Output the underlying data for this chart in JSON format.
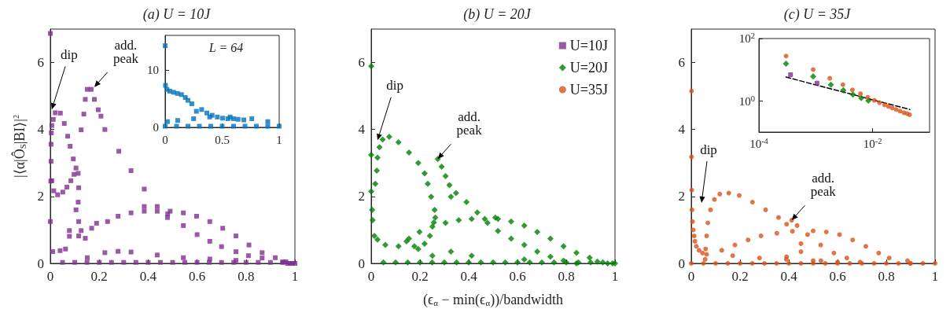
{
  "chart_data": [
    {
      "type": "scatter",
      "title": "(a) U = 10J",
      "ylabel": "|⟨α|Ô$_{S}$|BI⟩|$^{2}$",
      "xlim": [
        0,
        1
      ],
      "xticks": [
        0,
        0.2,
        0.4,
        0.6,
        0.8,
        1
      ],
      "ylim": [
        0,
        7
      ],
      "yticks": [
        0,
        2,
        4,
        6
      ],
      "marker": "square",
      "series": [
        {
          "color": "#7e2f8e",
          "x": [
            0,
            0,
            0.002,
            0.003,
            0.003,
            0.004,
            0.006,
            0.012,
            0.02,
            0.041,
            0.057,
            0.071,
            0.081,
            0.094,
            0.105,
            0.097,
            0.084,
            0.068,
            0.051,
            0.03,
            0.014,
            0.006,
            0.114,
            0.116,
            0.114,
            0.126,
            0.137,
            0.143,
            0.151,
            0.167,
            0.18,
            0.196,
            0.207,
            0.223,
            0.28,
            0.33,
            0.384,
            0.437,
            0.48,
            0.544,
            0.6,
            0.652,
            0.7,
            0.759,
            0.81,
            0.866,
            0.95,
            0.105,
            0.116,
            0.126,
            0.143,
            0.151,
            0.078,
            0.078,
            0.189,
            0.384,
            0.479,
            0.062,
            0.116,
            0.169,
            0.234,
            0.277,
            0.33,
            0.384,
            0.437,
            0.49,
            0.544,
            0.598,
            0.652,
            0.705,
            0.759,
            0.812,
            0.866,
            0.92,
            0.963,
            0.223,
            0.277,
            0.33,
            0.437,
            0.544,
            0.652,
            0.759,
            0.01,
            0.04,
            0.05,
            0.1,
            0.15,
            0.2,
            0.25,
            0.3,
            0.35,
            0.4,
            0.45,
            0.5,
            0.55,
            0.6,
            0.65,
            0.7,
            0.75,
            0.8,
            0.85,
            0.9,
            0.95,
            0.97,
            0.98,
            0.99,
            1
          ],
          "values": [
            6.87,
            1.25,
            2.46,
            3.05,
            3.56,
            3.9,
            4.12,
            4.3,
            4.5,
            4.49,
            4.18,
            3.8,
            3.5,
            3.12,
            2.85,
            2.66,
            2.47,
            2.28,
            2.13,
            2.05,
            2.17,
            2.47,
            1.83,
            2.26,
            2.69,
            3.99,
            4.46,
            4.9,
            5.2,
            5.2,
            4.9,
            4.59,
            4.4,
            4.0,
            3.35,
            2.77,
            2.22,
            1.7,
            1.48,
            1.13,
            0.86,
            0.66,
            0.5,
            0.35,
            0.23,
            0.16,
            0.04,
            1.6,
            1.25,
            0.98,
            0.75,
            0.17,
            0.98,
            0.81,
            1.2,
            1.7,
            1.37,
            0.43,
            0.82,
            1.05,
            1.25,
            1.41,
            1.51,
            1.56,
            1.56,
            1.56,
            1.51,
            1.41,
            1.25,
            1.05,
            0.82,
            0.55,
            0.32,
            0.17,
            0.05,
            0.32,
            0.36,
            0.34,
            0.25,
            0.17,
            0.13,
            0.09,
            0.35,
            0.38,
            0.03,
            0.03,
            0.03,
            0.03,
            0.03,
            0.03,
            0.03,
            0.03,
            0.03,
            0.03,
            0.03,
            0.03,
            0.03,
            0.03,
            0.03,
            0.03,
            0.03,
            0.03,
            0.03,
            0,
            0,
            0,
            0
          ]
        }
      ],
      "annotations": [
        {
          "text": "dip",
          "x": 0.006,
          "y": 4.6
        },
        {
          "text": "add. peak",
          "x": 0.18,
          "y": 5.27
        }
      ]
    },
    {
      "type": "scatter",
      "title": "L = 64",
      "xlim": [
        0,
        1
      ],
      "xticks": [
        0,
        0.5,
        1
      ],
      "ylim": [
        0,
        16
      ],
      "yticks": [
        0,
        10
      ],
      "marker": "square",
      "series": [
        {
          "color": "#0072bd",
          "x": [
            0,
            0.003,
            0.016,
            0.04,
            0.074,
            0.108,
            0.143,
            0.177,
            0.2,
            0.234,
            0.274,
            0.32,
            0.366,
            0.412,
            0.458,
            0.504,
            0.55,
            0.6,
            0.64,
            0.69,
            0.02,
            0.11,
            0.25,
            0.39,
            0.57,
            0.76,
            0.9,
            0,
            0.1,
            0.2,
            0.3,
            0.4,
            0.5,
            0.6,
            0.7,
            0.8,
            0.9,
            1
          ],
          "values": [
            14.2,
            7.3,
            6.6,
            6.3,
            6.1,
            5.9,
            5.7,
            5.2,
            4.7,
            4.1,
            2.8,
            3.1,
            2.5,
            2.1,
            1.8,
            1.6,
            1.5,
            1.5,
            1.4,
            1.3,
            1.0,
            1.2,
            1.5,
            1.8,
            1.8,
            1.5,
            1.0,
            0.2,
            0.2,
            0.2,
            0.2,
            0.2,
            0.2,
            0.2,
            0.2,
            0.2,
            0.2,
            0.2
          ]
        }
      ]
    },
    {
      "type": "scatter",
      "title": "(b) U = 20J",
      "xlabel": "(ϵ$_{α}$ − min(ϵ$_{α}$))/bandwidth",
      "xlim": [
        0,
        1
      ],
      "xticks": [
        0,
        0.2,
        0.4,
        0.6,
        0.8,
        1
      ],
      "ylim": [
        0,
        7
      ],
      "yticks": [
        0,
        2,
        4,
        6
      ],
      "marker": "diamond",
      "legend": "top right",
      "series": [
        {
          "name": "U=10J",
          "color": "#7e2f8e",
          "marker": "square"
        },
        {
          "name": "U=20J",
          "color": "#007f00",
          "x": [
            0,
            0,
            0,
            0.004,
            0.006,
            0.013,
            0.017,
            0.023,
            0.026,
            0.034,
            0.047,
            0.074,
            0.112,
            0.155,
            0.193,
            0.219,
            0.232,
            0.246,
            0.26,
            0.263,
            0.257,
            0.241,
            0.219,
            0.193,
            0.177,
            0.026,
            0.058,
            0.112,
            0.145,
            0.273,
            0.289,
            0.305,
            0.321,
            0.327,
            0.348,
            0.391,
            0.435,
            0.477,
            0.52,
            0.574,
            0.628,
            0.681,
            0.735,
            0.789,
            0.842,
            0.155,
            0.198,
            0.251,
            0.305,
            0.359,
            0.412,
            0.466,
            0.52,
            0.509,
            0.574,
            0.628,
            0.681,
            0.735,
            0.789,
            0.842,
            0.896,
            0.928,
            0.327,
            0.251,
            0.412,
            0.628,
            0.05,
            0.1,
            0.15,
            0.2,
            0.25,
            0.3,
            0.35,
            0.4,
            0.45,
            0.5,
            0.55,
            0.6,
            0.65,
            0.7,
            0.75,
            0.8,
            0.85,
            0.9,
            0.95,
            0.97,
            0.99,
            1
          ],
          "values": [
            5.89,
            3.24,
            2.15,
            1.6,
            1.29,
            0.82,
            2.38,
            2.77,
            3.16,
            3.47,
            3.7,
            3.78,
            3.62,
            3.31,
            3.0,
            2.69,
            2.38,
            1.99,
            1.6,
            1.37,
            1.22,
            0.82,
            0.59,
            0.43,
            0.51,
            0.71,
            0.55,
            0.51,
            0.66,
            3.12,
            2.89,
            2.61,
            2.34,
            1.99,
            2.1,
            1.83,
            1.52,
            1.21,
            0.97,
            0.74,
            0.55,
            0.35,
            0.2,
            0.08,
            0,
            0.74,
            0.94,
            1.1,
            1.21,
            1.29,
            1.33,
            1.33,
            1.33,
            1.37,
            1.25,
            1.13,
            0.94,
            0.74,
            0.51,
            0.32,
            0.17,
            0.05,
            0.35,
            0.23,
            0.23,
            0.12,
            0.03,
            0.03,
            0.03,
            0.03,
            0.03,
            0.03,
            0.03,
            0.03,
            0.03,
            0.03,
            0.03,
            0.03,
            0.03,
            0.03,
            0.03,
            0.03,
            0.03,
            0.03,
            0.03,
            0,
            0,
            0
          ]
        },
        {
          "name": "U=35J",
          "color": "#d95319",
          "marker": "circle"
        }
      ],
      "annotations": [
        {
          "text": "dip",
          "x": 0.026,
          "y": 3.68
        },
        {
          "text": "add. peak",
          "x": 0.273,
          "y": 3.12
        }
      ]
    },
    {
      "type": "scatter",
      "title": "(c) U = 35J",
      "xlim": [
        0,
        1
      ],
      "xticks": [
        0,
        0.2,
        0.4,
        0.6,
        0.8,
        1
      ],
      "ylim": [
        0,
        7
      ],
      "yticks": [
        0,
        2,
        4,
        6
      ],
      "marker": "circle",
      "series": [
        {
          "color": "#d95319",
          "x": [
            0.001,
            0.001,
            0.002,
            0.003,
            0.005,
            0.008,
            0.012,
            0.015,
            0.021,
            0.032,
            0.046,
            0.057,
            0.059,
            0.063,
            0.068,
            0.079,
            0.095,
            0.117,
            0.154,
            0.197,
            0.251,
            0.305,
            0.358,
            0.391,
            0.412,
            0.434,
            0.477,
            0.531,
            0.585,
            0.638,
            0.692,
            0.45,
            0.45,
            0.391,
            0.532,
            0.125,
            0.179,
            0.233,
            0.286,
            0.351,
            0.415,
            0.5,
            0.554,
            0.608,
            0.662,
            0.716,
            0.769,
            0.812,
            0.887,
            0.898,
            0.063,
            0.17,
            0.28,
            0.39,
            0.5,
            0.6,
            0,
            0.05,
            0.1,
            0.15,
            0.2,
            0.25,
            0.3,
            0.35,
            0.4,
            0.45,
            0.5,
            0.55,
            0.6,
            0.65,
            0.7,
            0.75,
            0.8,
            0.85,
            0.9,
            0.95,
            1
          ],
          "values": [
            5.15,
            3.18,
            2.19,
            1.6,
            1.25,
            1.0,
            0.82,
            0.66,
            0.51,
            0.39,
            0.31,
            0.12,
            0.43,
            0.82,
            1.21,
            1.6,
            1.91,
            2.07,
            2.1,
            2.03,
            1.83,
            1.6,
            1.37,
            1.17,
            1.29,
            1.13,
            0.86,
            0.55,
            0.31,
            0.16,
            0.04,
            0.59,
            0.35,
            0.2,
            0.08,
            0.39,
            0.55,
            0.7,
            0.82,
            0.9,
            0.96,
            0.97,
            0.94,
            0.86,
            0.7,
            0.51,
            0.31,
            0.16,
            0.08,
            0,
            0.27,
            0.23,
            0.16,
            0.12,
            0.08,
            0.04,
            0,
            0,
            0,
            0,
            0,
            0,
            0,
            0,
            0,
            0,
            0,
            0,
            0,
            0,
            0,
            0,
            0,
            0,
            0,
            0,
            0
          ]
        }
      ],
      "annotations": [
        "dip",
        {
          "text": "add. peak",
          "x": 0.412,
          "y": 1.29
        }
      ]
    },
    {
      "type": "scatter",
      "log": "xy",
      "xlim": [
        0.0001,
        0.1
      ],
      "xticks": [
        {
          "value": 0.0001,
          "label": "10$^{-4}$"
        },
        {
          "value": 0.01,
          "label": "10$^{-2}$"
        }
      ],
      "ylim": [
        0.1,
        100
      ],
      "yticks": [
        {
          "value": 1,
          "label": "10$^{0}$"
        },
        {
          "value": 100,
          "label": "10$^{2}$"
        }
      ],
      "series": [
        {
          "type": "line",
          "color": "#000000",
          "line_style": "dashed",
          "marker": "none",
          "x": [
            0.0003,
            0.045
          ],
          "values": [
            5.8,
            0.53
          ]
        },
        {
          "color": "#7e2f8e",
          "marker": "square",
          "x": [
            0.00036,
            0.00105
          ],
          "values": [
            6.9,
            3.7
          ]
        },
        {
          "color": "#007f00",
          "marker": "diamond",
          "x": [
            0.0003,
            0.0009,
            0.00184,
            0.00305,
            0.0045,
            0.0063,
            0.0084
          ],
          "values": [
            15.6,
            6.1,
            3.3,
            2.2,
            1.6,
            1.23,
            1.02
          ]
        },
        {
          "color": "#d95319",
          "marker": "circle",
          "x": [
            0.0003,
            0.0009,
            0.00176,
            0.003,
            0.0044,
            0.0061,
            0.0082,
            0.0107,
            0.0132,
            0.0162,
            0.019,
            0.0221,
            0.0259,
            0.0303,
            0.0355,
            0.0403,
            0.0446
          ],
          "values": [
            27.5,
            10.1,
            5.3,
            3.3,
            2.25,
            1.7,
            1.3,
            1.04,
            0.88,
            0.74,
            0.66,
            0.59,
            0.53,
            0.47,
            0.42,
            0.39,
            0.36
          ]
        }
      ]
    }
  ]
}
